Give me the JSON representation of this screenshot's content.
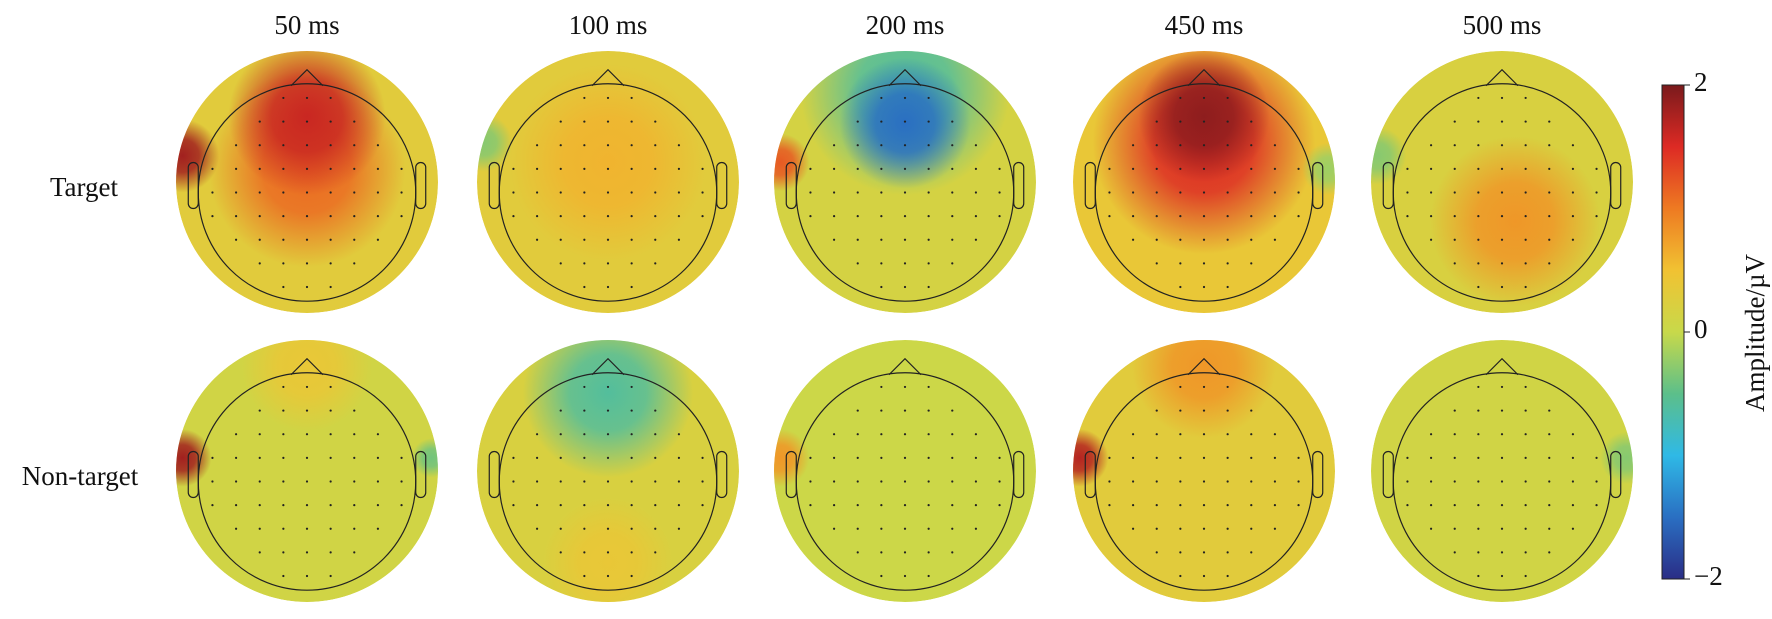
{
  "chart_data": {
    "type": "topomap",
    "columns": [
      "50 ms",
      "100 ms",
      "200 ms",
      "450 ms",
      "500 ms"
    ],
    "rows": [
      "Target",
      "Non-target"
    ],
    "colorbar_label": "Amplitude/µV",
    "clim": [
      -2,
      2
    ],
    "cticks": [
      {
        "value": -2,
        "label": "−2"
      },
      0,
      2
    ],
    "colormap": [
      "#2a2d86",
      "#2a6fc2",
      "#2fb9e6",
      "#5cbf8a",
      "#c8d94a",
      "#f1c232",
      "#ee7a22",
      "#dd2a24",
      "#7a1a1c"
    ],
    "maps": [
      [
        {
          "base": 0.3,
          "peaks": [
            {
              "x": 0,
              "y": 0.1,
              "value": 1.1,
              "r": 0.75
            },
            {
              "x": 0,
              "y": 0.5,
              "value": 1.6,
              "r": 0.6
            },
            {
              "x": -0.95,
              "y": 0.2,
              "value": 1.8,
              "r": 0.28
            }
          ]
        },
        {
          "base": 0.3,
          "peaks": [
            {
              "x": 0,
              "y": 0.15,
              "value": 0.6,
              "r": 0.75
            },
            {
              "x": -0.95,
              "y": 0.3,
              "value": -0.3,
              "r": 0.22
            }
          ]
        },
        {
          "base": 0.15,
          "peaks": [
            {
              "x": 0,
              "y": 0.7,
              "value": -0.6,
              "r": 0.8
            },
            {
              "x": 0,
              "y": 0.45,
              "value": -1.5,
              "r": 0.5
            },
            {
              "x": -0.95,
              "y": 0.15,
              "value": 1.2,
              "r": 0.22
            }
          ]
        },
        {
          "base": 0.4,
          "peaks": [
            {
              "x": 0,
              "y": 0.3,
              "value": 1.5,
              "r": 0.85
            },
            {
              "x": 0,
              "y": 0.5,
              "value": 1.9,
              "r": 0.5
            },
            {
              "x": 0.95,
              "y": 0.1,
              "value": -0.2,
              "r": 0.2
            }
          ]
        },
        {
          "base": 0.2,
          "peaks": [
            {
              "x": 0.1,
              "y": -0.3,
              "value": 0.8,
              "r": 0.65
            },
            {
              "x": -0.95,
              "y": 0.2,
              "value": -0.3,
              "r": 0.22
            }
          ]
        }
      ],
      [
        {
          "base": 0.1,
          "peaks": [
            {
              "x": 0,
              "y": 0.8,
              "value": 0.4,
              "r": 0.5
            },
            {
              "x": -0.95,
              "y": 0.1,
              "value": 1.8,
              "r": 0.22
            },
            {
              "x": 0.95,
              "y": 0.1,
              "value": -0.4,
              "r": 0.15
            }
          ]
        },
        {
          "base": 0.2,
          "peaks": [
            {
              "x": 0,
              "y": 0.6,
              "value": -0.6,
              "r": 0.65
            },
            {
              "x": 0,
              "y": -0.7,
              "value": 0.4,
              "r": 0.5
            }
          ]
        },
        {
          "base": 0.05,
          "peaks": [
            {
              "x": -0.95,
              "y": 0.1,
              "value": 0.8,
              "r": 0.22
            }
          ]
        },
        {
          "base": 0.3,
          "peaks": [
            {
              "x": 0,
              "y": 0.8,
              "value": 0.8,
              "r": 0.55
            },
            {
              "x": -0.95,
              "y": 0.1,
              "value": 1.7,
              "r": 0.22
            }
          ]
        },
        {
          "base": 0.1,
          "peaks": [
            {
              "x": 0.95,
              "y": 0.1,
              "value": -0.3,
              "r": 0.2
            }
          ]
        }
      ]
    ]
  }
}
